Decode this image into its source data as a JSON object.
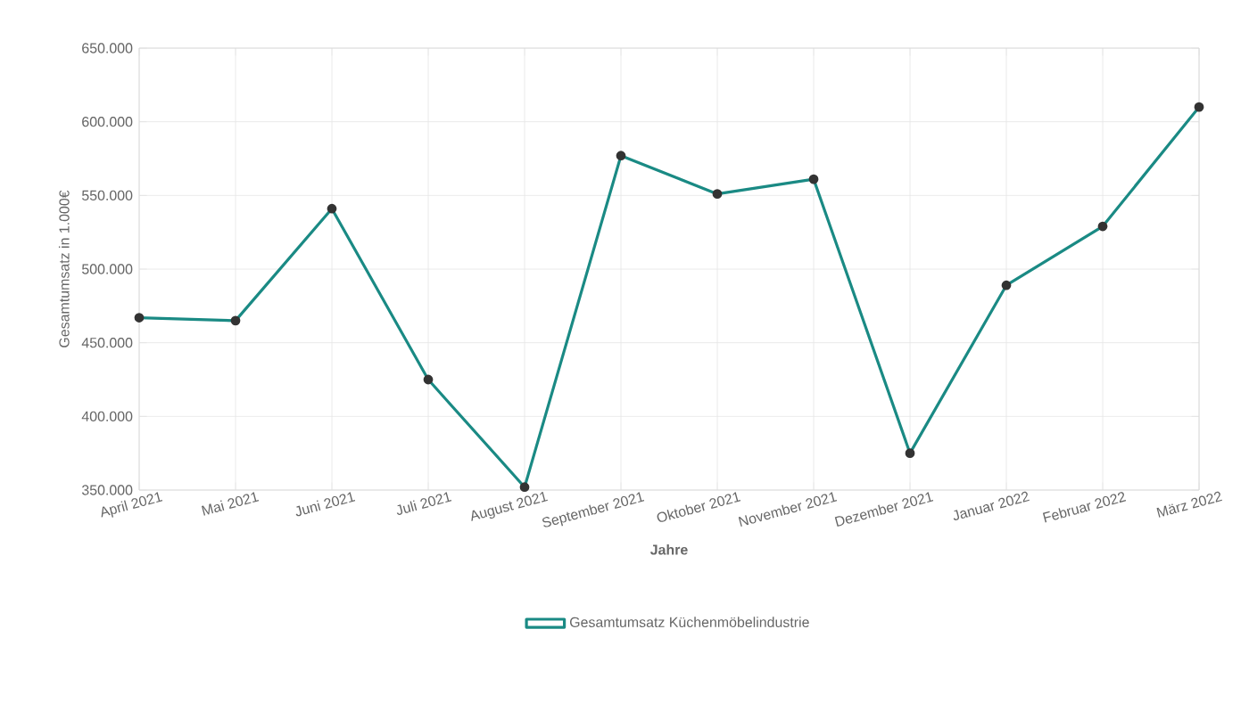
{
  "chart_data": {
    "type": "line",
    "categories": [
      "April 2021",
      "Mai 2021",
      "Juni 2021",
      "Juli 2021",
      "August 2021",
      "September 2021",
      "Oktober 2021",
      "November 2021",
      "Dezember 2021",
      "Januar 2022",
      "Februar 2022",
      "März 2022"
    ],
    "series": [
      {
        "name": "Gesamtumsatz Küchenmöbelindustrie",
        "color": "#1a8a84",
        "values": [
          467000,
          465000,
          541000,
          425000,
          352000,
          577000,
          551000,
          561000,
          375000,
          489000,
          529000,
          610000
        ]
      }
    ],
    "xlabel": "Jahre",
    "ylabel": "Gesamtumsatz in 1.000€",
    "ylim": [
      350000,
      650000
    ],
    "yticks": [
      {
        "value": 350000,
        "label": "350.000"
      },
      {
        "value": 400000,
        "label": "400.000"
      },
      {
        "value": 450000,
        "label": "450.000"
      },
      {
        "value": 500000,
        "label": "500.000"
      },
      {
        "value": 550000,
        "label": "550.000"
      },
      {
        "value": 600000,
        "label": "600.000"
      },
      {
        "value": 650000,
        "label": "650.000"
      }
    ],
    "grid": true,
    "legend": "bottom",
    "marker": "circle",
    "line_style": "solid"
  }
}
